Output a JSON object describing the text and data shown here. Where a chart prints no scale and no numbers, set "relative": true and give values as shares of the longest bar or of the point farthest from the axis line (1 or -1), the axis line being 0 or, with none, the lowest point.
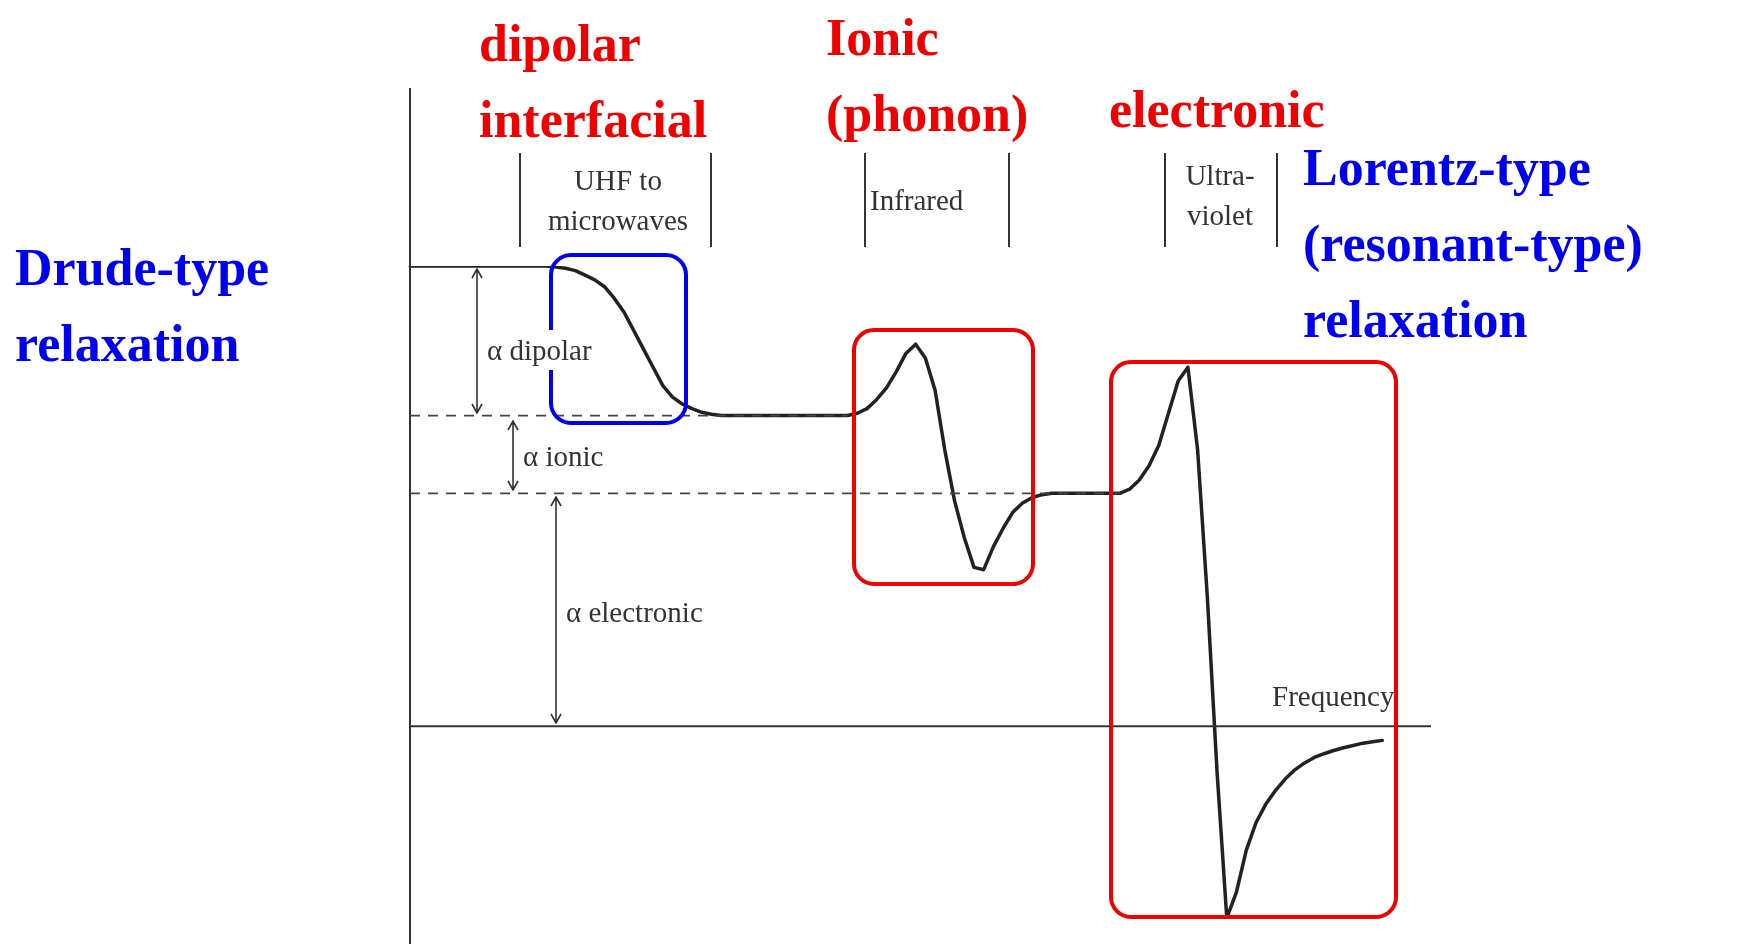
{
  "chart_data": {
    "type": "line",
    "relative": true,
    "xlabel": "Frequency",
    "categories": [
      null,
      null,
      null,
      null,
      null,
      null,
      null,
      null,
      null,
      null,
      null,
      null,
      null,
      null,
      null,
      null,
      null,
      null,
      null,
      null,
      null,
      null,
      null,
      null,
      null,
      null,
      null,
      null,
      null,
      null,
      null,
      null,
      null,
      null,
      null,
      null,
      null,
      null,
      null,
      null,
      null,
      null,
      null,
      null,
      null,
      null,
      null,
      null,
      null,
      null,
      null,
      null,
      null,
      null,
      null,
      null,
      null,
      null,
      null,
      null,
      null,
      null,
      null,
      null,
      null,
      null,
      null,
      null,
      null,
      null,
      null,
      null,
      null,
      null,
      null,
      null,
      null,
      null,
      null,
      null,
      null,
      null,
      null,
      null,
      null,
      null,
      null,
      null,
      null,
      null,
      null,
      null,
      null,
      null,
      null,
      null,
      null,
      null,
      null,
      null,
      null,
      null,
      null,
      null,
      null,
      null
    ],
    "series": [
      {
        "color": "#222222",
        "values": [
          1,
          1,
          1,
          1,
          1,
          1,
          1,
          1,
          1,
          1,
          1,
          1,
          1,
          1,
          1,
          0.998,
          0.995,
          0.99,
          0.98,
          0.97,
          0.955,
          0.93,
          0.9,
          0.86,
          0.82,
          0.78,
          0.74,
          0.715,
          0.7,
          0.69,
          0.682,
          0.678,
          0.675,
          0.675,
          0.675,
          0.675,
          0.675,
          0.675,
          0.675,
          0.675,
          0.675,
          0.675,
          0.675,
          0.675,
          0.675,
          0.675,
          0.68,
          0.69,
          0.71,
          0.735,
          0.77,
          0.81,
          0.83,
          0.8,
          0.73,
          0.6,
          0.49,
          0.41,
          0.345,
          0.34,
          0.39,
          0.43,
          0.465,
          0.485,
          0.497,
          0.503,
          0.506,
          0.506,
          0.506,
          0.506,
          0.506,
          0.506,
          0.506,
          0.506,
          0.515,
          0.535,
          0.566,
          0.61,
          0.68,
          0.75,
          0.78,
          0.6,
          0.28,
          -0.1,
          -0.417,
          -0.36,
          -0.27,
          -0.21,
          -0.17,
          -0.14,
          -0.115,
          -0.095,
          -0.08,
          -0.068,
          -0.06,
          -0.053,
          -0.047,
          -0.042,
          -0.037,
          -0.034,
          -0.031,
          null,
          null,
          null,
          null,
          null
        ]
      }
    ],
    "ref_lines": [
      {
        "axis": "y",
        "value": 0.675,
        "line_style": "dashed"
      },
      {
        "axis": "y",
        "value": 0.506,
        "line_style": "dashed"
      }
    ],
    "marker": "none",
    "line_style": "solid",
    "annotations": [
      "Drude-type relaxation",
      "dipolar interfacial",
      "Ionic (phonon)",
      "electronic",
      "Lorentz-type (resonant-type) relaxation",
      "UHF to microwaves",
      "Infrared",
      "Ultra-violet",
      "α dipolar",
      "α ionic",
      "α electronic"
    ]
  }
}
